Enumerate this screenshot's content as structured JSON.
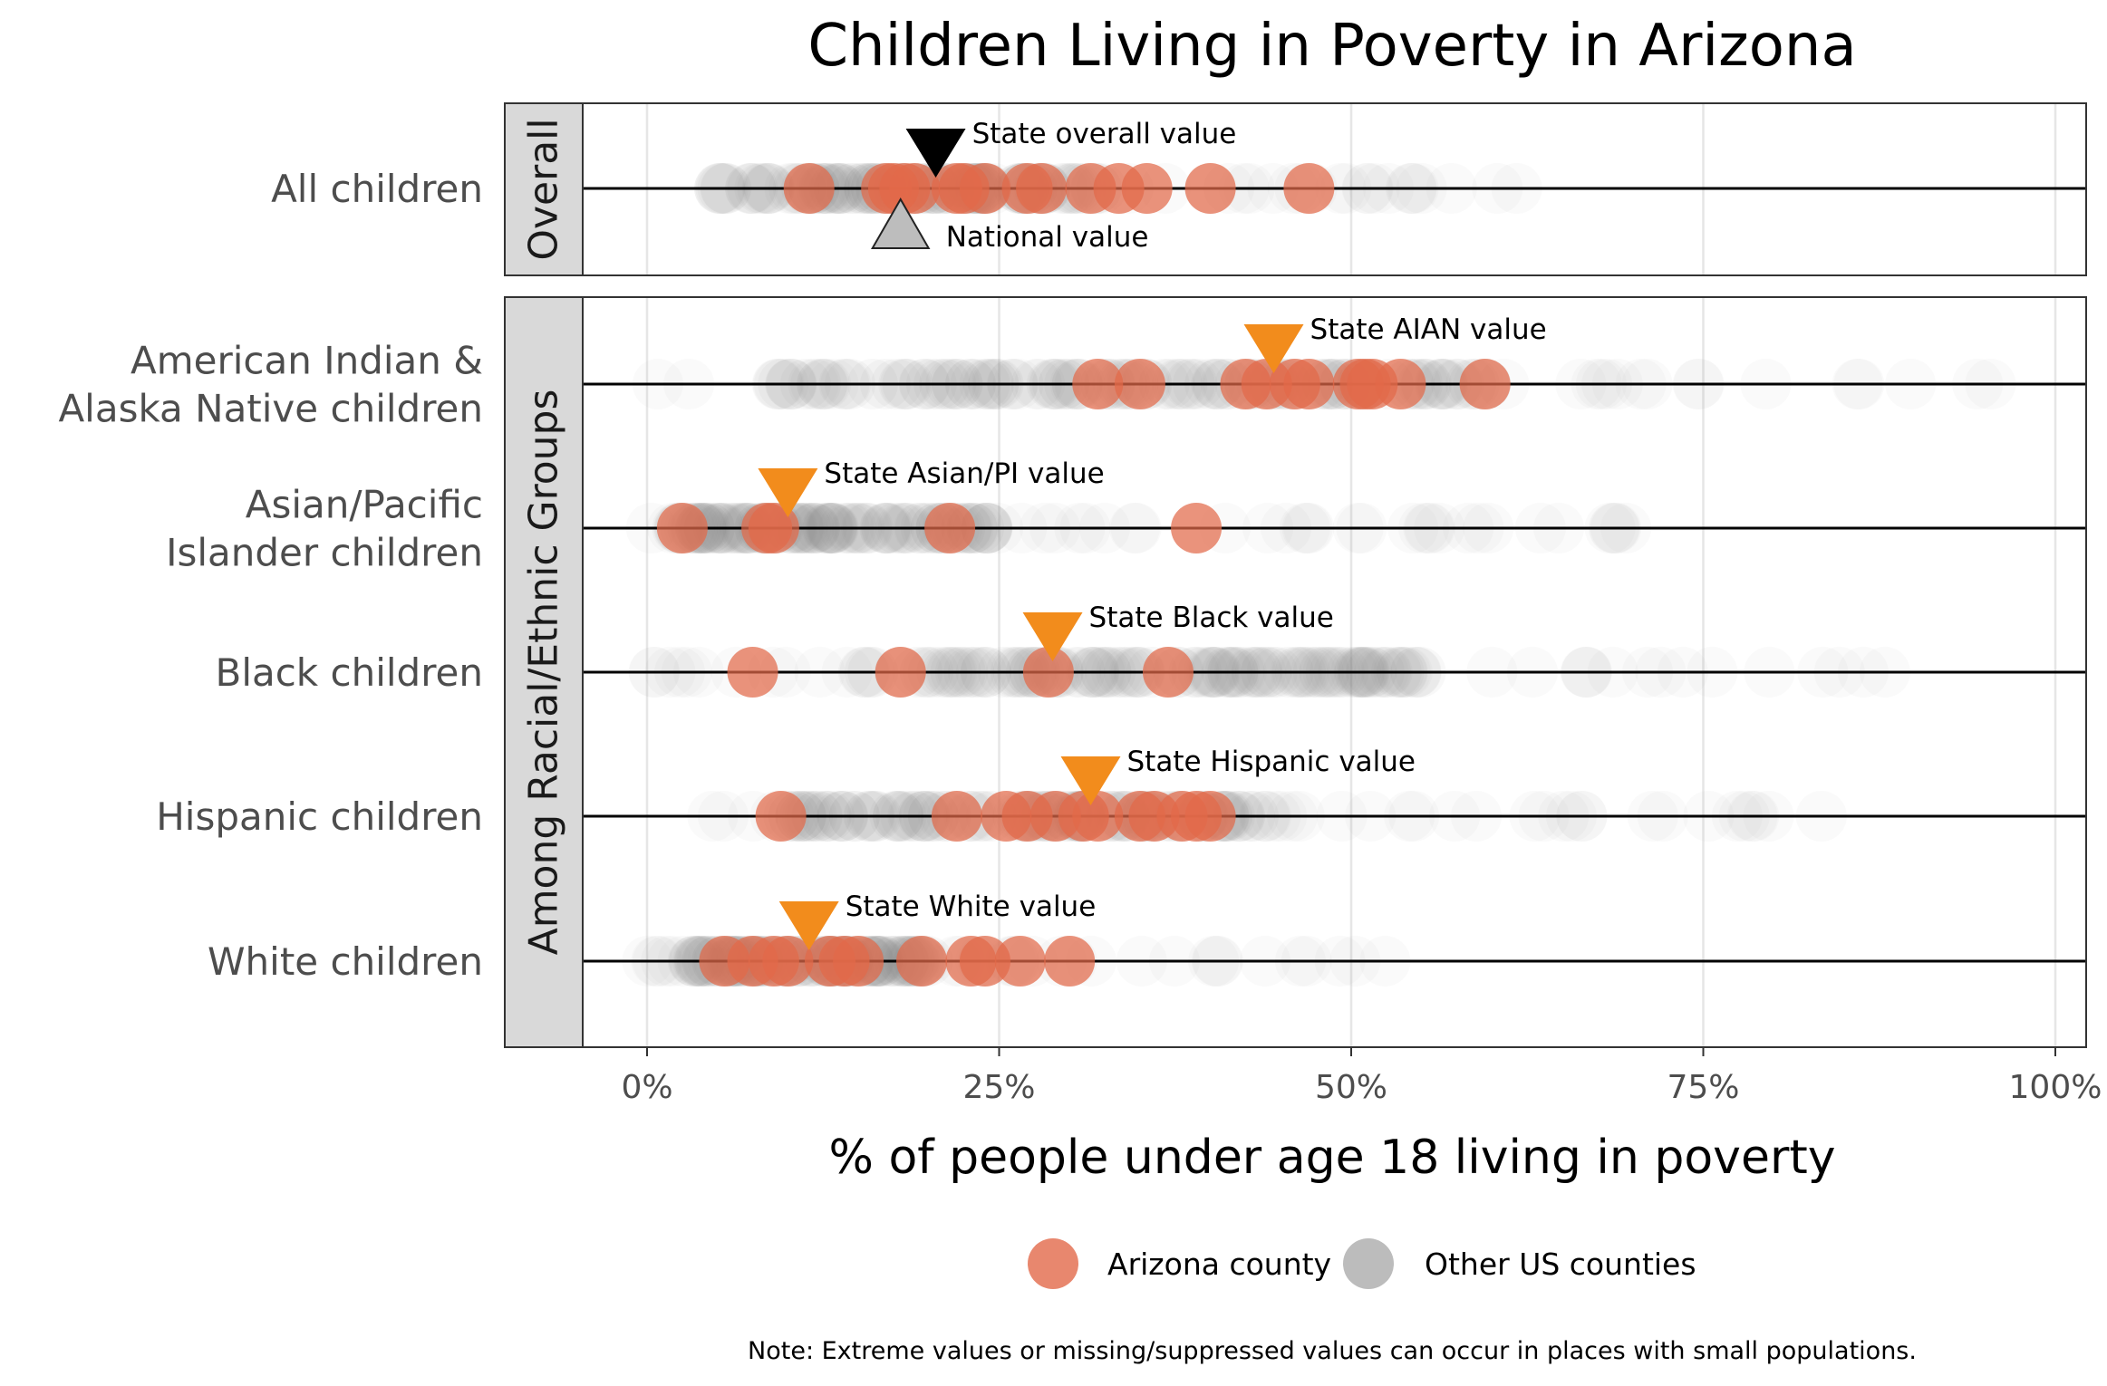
{
  "chart_data": {
    "type": "scatter",
    "title": "Children Living in Poverty in Arizona",
    "xlabel": "% of people under age 18 living in poverty",
    "xlim": [
      0,
      100
    ],
    "x_ticks": [
      "0%",
      "25%",
      "50%",
      "75%",
      "100%"
    ],
    "x_tick_values": [
      0,
      25,
      50,
      75,
      100
    ],
    "grid": true,
    "legend_position": "bottom",
    "legend": [
      {
        "label": "Arizona county",
        "color": "#e2694a"
      },
      {
        "label": "Other US counties",
        "color": "#a6a6a6"
      }
    ],
    "note": "Note: Extreme values or missing/suppressed values can occur in places with small populations.",
    "colors": {
      "arizona": "#e2694a",
      "other": "#9a9a9a",
      "state_overall": "#000000",
      "national": "#bdbdbd",
      "state_group": "#f28c1c"
    },
    "panels": [
      {
        "strip": "Overall",
        "rows": [
          {
            "label_lines": [
              "All children"
            ],
            "arizona": [
              11.5,
              17,
              17.5,
              18.3,
              19,
              22,
              22.5,
              24,
              27,
              28,
              31.5,
              33.5,
              35.5,
              40,
              47
            ],
            "others": {
              "min": 2,
              "max": 62,
              "dense_min": 5,
              "dense_max": 32
            },
            "markers": [
              {
                "kind": "state",
                "value": 20.5,
                "label": "State overall value"
              },
              {
                "kind": "national",
                "value": 18,
                "label": "National value"
              }
            ]
          }
        ]
      },
      {
        "strip": "Among Racial/Ethnic Groups",
        "rows": [
          {
            "label_lines": [
              "American Indian &",
              "Alaska Native children"
            ],
            "arizona": [
              32,
              35,
              42.5,
              44,
              46,
              47,
              50.5,
              51,
              51.5,
              53.5,
              59.5
            ],
            "others": {
              "min": 0,
              "max": 97,
              "dense_min": 8,
              "dense_max": 60
            },
            "markers": [
              {
                "kind": "state",
                "value": 44.5,
                "label": "State AIAN value"
              }
            ]
          },
          {
            "label_lines": [
              "Asian/Pacific",
              "Islander children"
            ],
            "arizona": [
              2.5,
              8.5,
              9,
              21.5,
              39
            ],
            "others": {
              "min": 0,
              "max": 70,
              "dense_min": 2,
              "dense_max": 25
            },
            "markers": [
              {
                "kind": "state",
                "value": 10,
                "label": "State Asian/PI value"
              }
            ]
          },
          {
            "label_lines": [
              "Black children"
            ],
            "arizona": [
              7.5,
              18,
              28.5,
              37
            ],
            "others": {
              "min": 0,
              "max": 90,
              "dense_min": 15,
              "dense_max": 55
            },
            "markers": [
              {
                "kind": "state",
                "value": 28.8,
                "label": "State Black value"
              }
            ]
          },
          {
            "label_lines": [
              "Hispanic children"
            ],
            "arizona": [
              9.5,
              22,
              25.5,
              27,
              29,
              31,
              32,
              35,
              36,
              38,
              39,
              40
            ],
            "others": {
              "min": 0,
              "max": 85,
              "dense_min": 10,
              "dense_max": 45
            },
            "markers": [
              {
                "kind": "state",
                "value": 31.5,
                "label": "State Hispanic value"
              }
            ]
          },
          {
            "label_lines": [
              "White children"
            ],
            "arizona": [
              5.5,
              7.5,
              9,
              10,
              13,
              14,
              15,
              19.5,
              23,
              24,
              26.5,
              30
            ],
            "others": {
              "min": 0,
              "max": 55,
              "dense_min": 3,
              "dense_max": 20
            },
            "markers": [
              {
                "kind": "state",
                "value": 11.5,
                "label": "State White value"
              }
            ]
          }
        ]
      }
    ]
  }
}
